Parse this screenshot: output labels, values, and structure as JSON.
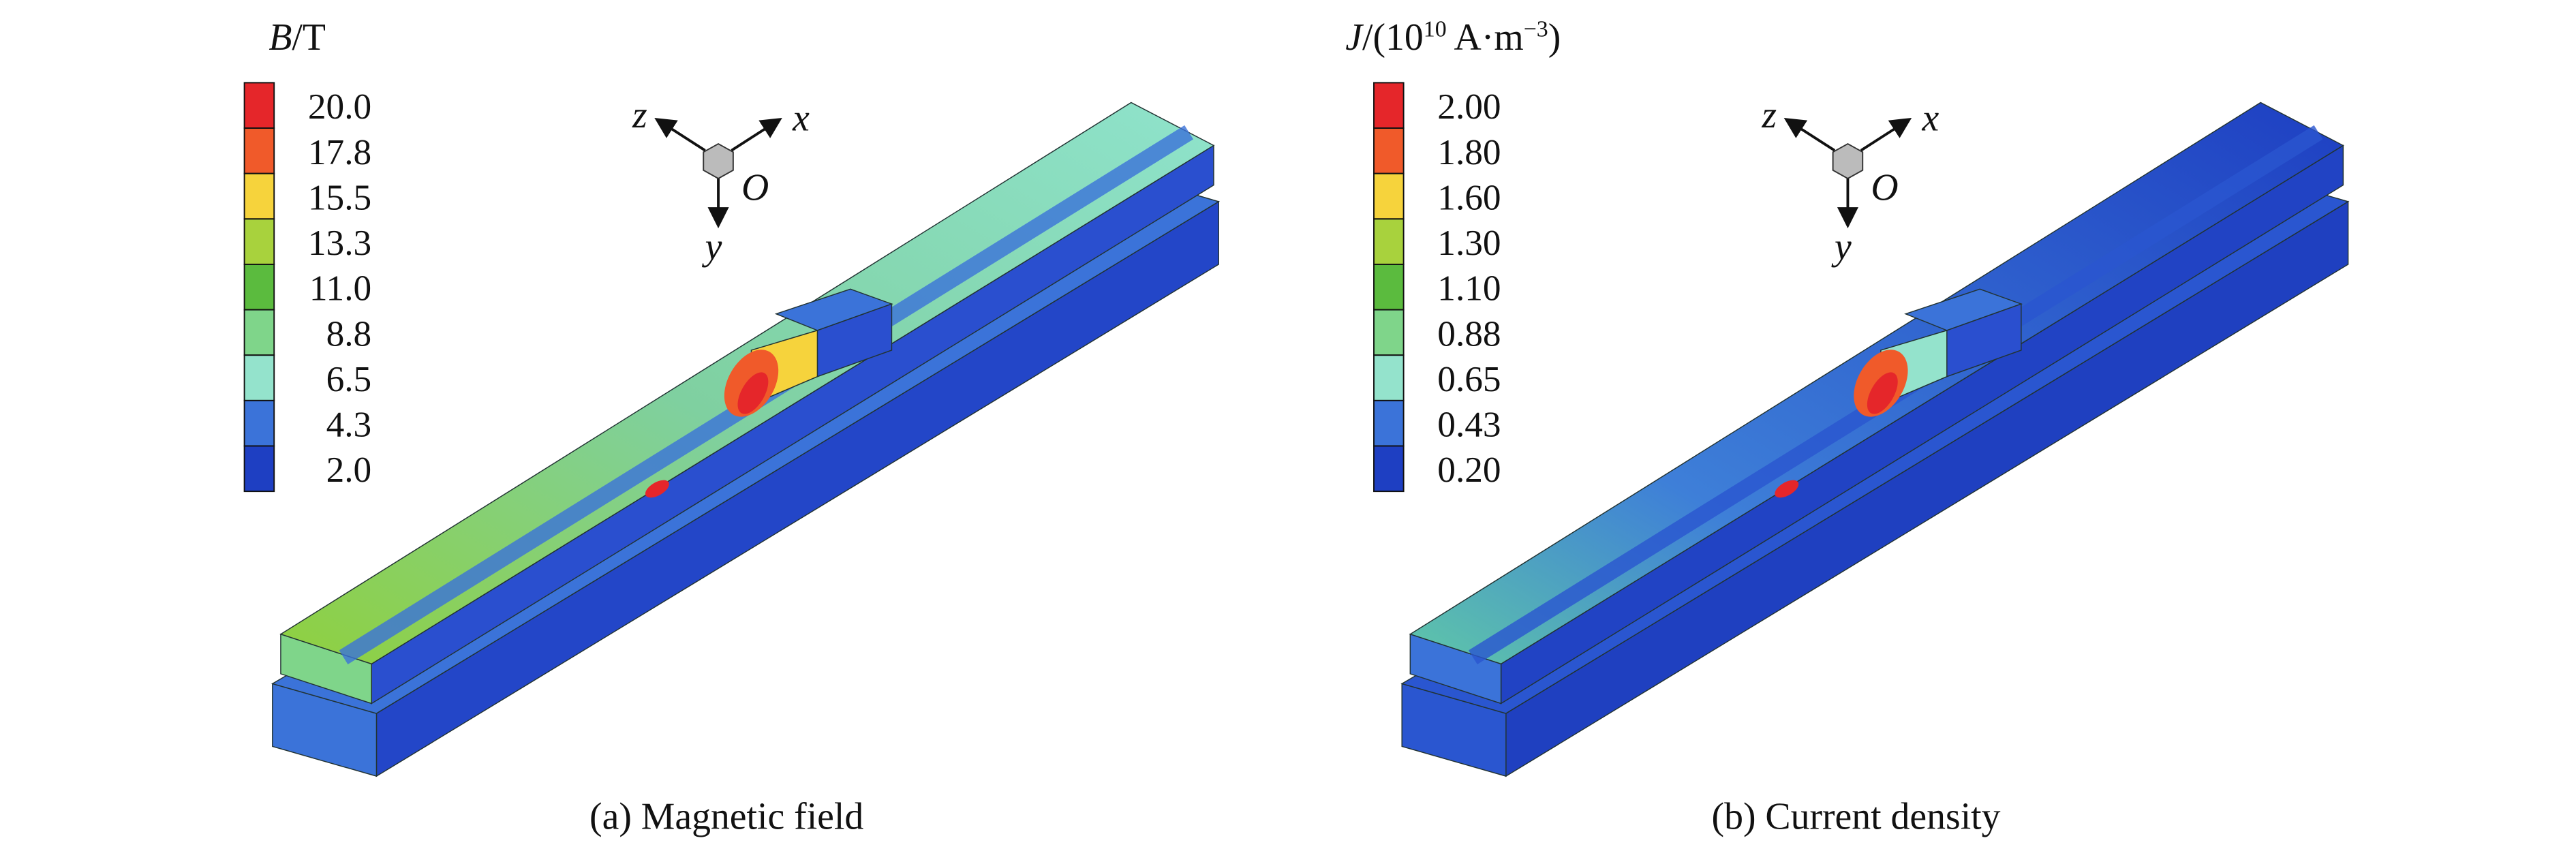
{
  "panels": [
    {
      "legend": {
        "title": [
          "B",
          "/T"
        ],
        "labels": [
          "20.0",
          "17.8",
          "15.5",
          "13.3",
          "11.0",
          "8.8",
          "6.5",
          "4.3",
          "2.0"
        ],
        "colors": [
          "#e5262a",
          "#f05a2a",
          "#f6d33c",
          "#a8d23d",
          "#5bbb3e",
          "#7fd58a",
          "#94e3cc",
          "#3b73d9",
          "#1e3fc2"
        ]
      },
      "axes": {
        "z": "z",
        "x": "x",
        "origin": "O",
        "y": "y"
      },
      "caption": "(a) Magnetic field"
    },
    {
      "legend": {
        "title": [
          "J",
          "/(10",
          "10",
          " A·m",
          "−3",
          ")"
        ],
        "labels": [
          "2.00",
          "1.80",
          "1.60",
          "1.30",
          "1.10",
          "0.88",
          "0.65",
          "0.43",
          "0.20"
        ],
        "colors": [
          "#e5262a",
          "#f05a2a",
          "#f6d33c",
          "#a8d23d",
          "#5bbb3e",
          "#7fd58a",
          "#94e3cc",
          "#3b73d9",
          "#1e3fc2"
        ]
      },
      "axes": {
        "z": "z",
        "x": "x",
        "origin": "O",
        "y": "y"
      },
      "caption": "(b) Current density"
    }
  ]
}
